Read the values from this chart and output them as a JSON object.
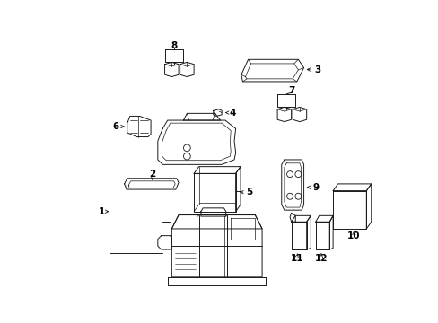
{
  "background_color": "#ffffff",
  "line_color": "#1a1a1a",
  "lw": 0.7,
  "figsize": [
    4.89,
    3.6
  ],
  "dpi": 100
}
